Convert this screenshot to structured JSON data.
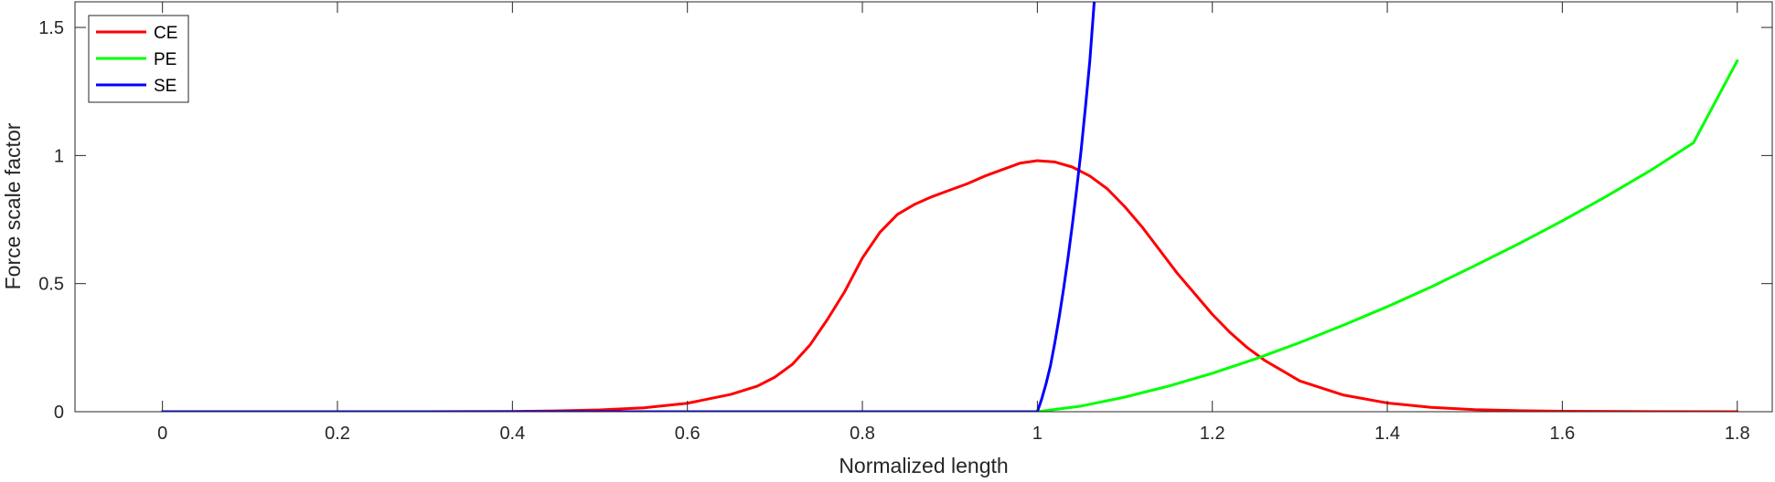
{
  "chart_data": {
    "type": "line",
    "title": "",
    "xlabel": "Normalized length",
    "ylabel": "Force scale factor",
    "xlim": [
      -0.1,
      1.84
    ],
    "ylim": [
      0,
      1.6
    ],
    "xticks": [
      0,
      0.2,
      0.4,
      0.6,
      0.8,
      1,
      1.2,
      1.4,
      1.6,
      1.8
    ],
    "xtick_labels": [
      "0",
      "0.2",
      "0.4",
      "0.6",
      "0.8",
      "1",
      "1.2",
      "1.4",
      "1.6",
      "1.8"
    ],
    "yticks": [
      0,
      0.5,
      1,
      1.5
    ],
    "ytick_labels": [
      "0",
      "0.5",
      "1",
      "1.5"
    ],
    "grid": false,
    "legend_position": "top-left",
    "series": [
      {
        "name": "CE",
        "color": "#ff0000",
        "x": [
          0,
          0.3,
          0.4,
          0.45,
          0.5,
          0.55,
          0.6,
          0.65,
          0.68,
          0.7,
          0.72,
          0.74,
          0.76,
          0.78,
          0.8,
          0.82,
          0.84,
          0.86,
          0.88,
          0.9,
          0.92,
          0.94,
          0.96,
          0.98,
          1.0,
          1.02,
          1.04,
          1.06,
          1.08,
          1.1,
          1.12,
          1.14,
          1.16,
          1.18,
          1.2,
          1.22,
          1.24,
          1.26,
          1.28,
          1.3,
          1.35,
          1.4,
          1.45,
          1.5,
          1.55,
          1.6,
          1.7,
          1.8
        ],
        "y": [
          0,
          0.0002,
          0.001,
          0.003,
          0.007,
          0.015,
          0.033,
          0.068,
          0.1,
          0.135,
          0.185,
          0.26,
          0.36,
          0.47,
          0.6,
          0.7,
          0.77,
          0.81,
          0.84,
          0.865,
          0.89,
          0.92,
          0.945,
          0.97,
          0.98,
          0.975,
          0.955,
          0.92,
          0.87,
          0.8,
          0.72,
          0.63,
          0.54,
          0.46,
          0.38,
          0.31,
          0.25,
          0.2,
          0.16,
          0.12,
          0.065,
          0.034,
          0.017,
          0.008,
          0.004,
          0.002,
          0.0005,
          0.0001
        ]
      },
      {
        "name": "PE",
        "color": "#00ff00",
        "x": [
          0,
          1.0,
          1.05,
          1.1,
          1.15,
          1.2,
          1.25,
          1.3,
          1.35,
          1.4,
          1.45,
          1.5,
          1.55,
          1.6,
          1.65,
          1.7,
          1.75,
          1.8
        ],
        "y": [
          0,
          0,
          0.022,
          0.057,
          0.1,
          0.15,
          0.207,
          0.27,
          0.338,
          0.41,
          0.487,
          0.57,
          0.655,
          0.745,
          0.84,
          0.94,
          1.05,
          1.37
        ]
      },
      {
        "name": "SE",
        "color": "#0000ff",
        "x": [
          0,
          1.0,
          1.005,
          1.01,
          1.015,
          1.02,
          1.025,
          1.03,
          1.035,
          1.04,
          1.045,
          1.05,
          1.055,
          1.06,
          1.065
        ],
        "y": [
          0,
          0,
          0.05,
          0.11,
          0.18,
          0.27,
          0.37,
          0.48,
          0.6,
          0.73,
          0.87,
          1.02,
          1.19,
          1.37,
          1.6
        ]
      }
    ]
  }
}
